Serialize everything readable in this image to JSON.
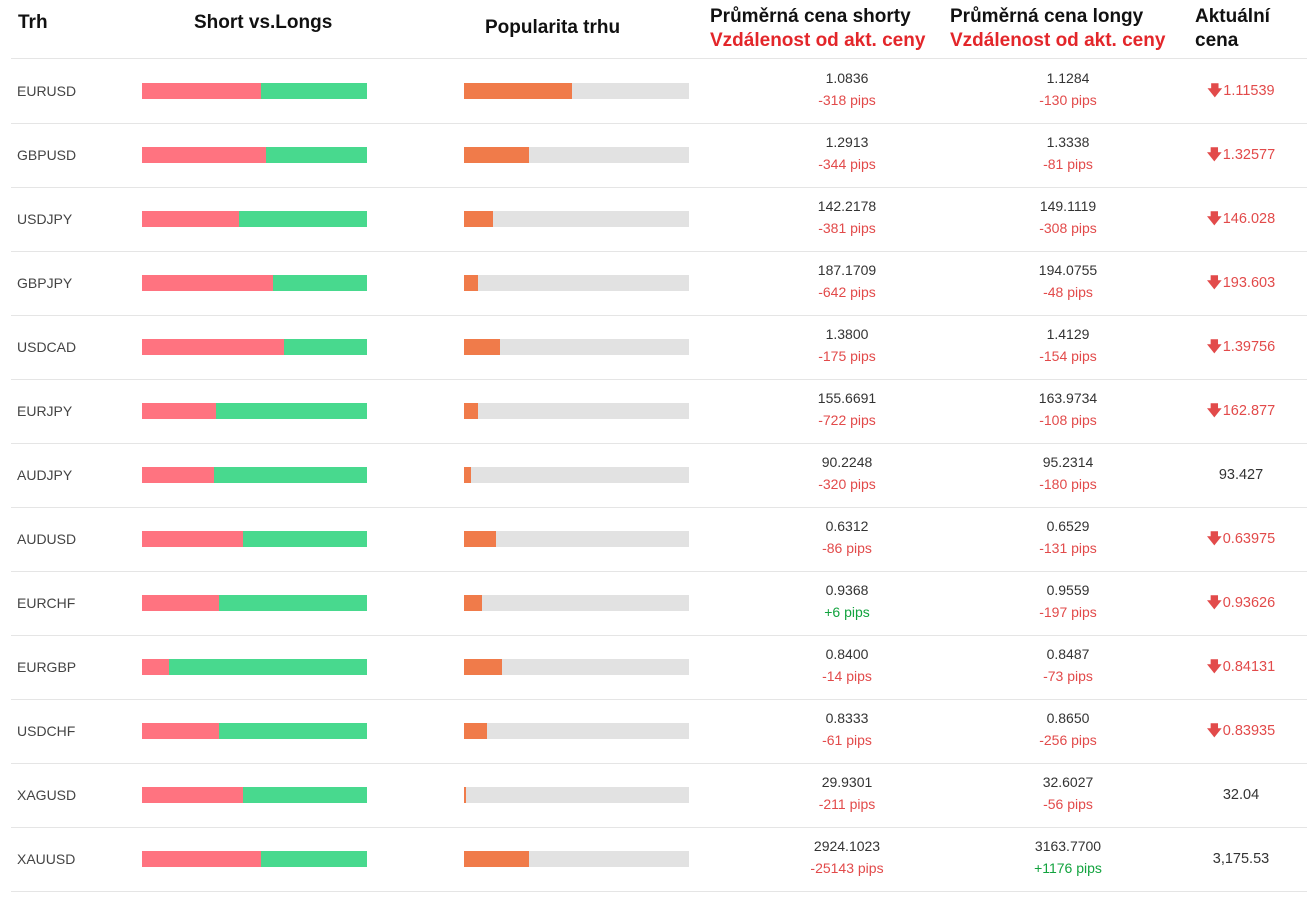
{
  "header": {
    "market": "Trh",
    "short_long": "Short vs.Longs",
    "popularity": "Popularita trhu",
    "avg_short": "Průměrná cena shorty",
    "avg_short_sub": "Vzdálenost od akt. ceny",
    "avg_long": "Průměrná cena longy",
    "avg_long_sub": "Vzdálenost od akt. ceny",
    "current_line1": "Aktuální",
    "current_line2": "cena"
  },
  "colors": {
    "short": "#ff7380",
    "long": "#48d98e",
    "popularity": "#f07b4a",
    "negative": "#e24a4a",
    "positive": "#12a33e"
  },
  "rows": [
    {
      "market": "EURUSD",
      "short_pct": 53,
      "popularity_pct": 48,
      "avg_short": "1.0836",
      "short_pips": "-318 pips",
      "short_pos": false,
      "avg_long": "1.1284",
      "long_pips": "-130 pips",
      "long_pos": false,
      "current": "1.11539",
      "down": true
    },
    {
      "market": "GBPUSD",
      "short_pct": 55,
      "popularity_pct": 29,
      "avg_short": "1.2913",
      "short_pips": "-344 pips",
      "short_pos": false,
      "avg_long": "1.3338",
      "long_pips": "-81 pips",
      "long_pos": false,
      "current": "1.32577",
      "down": true
    },
    {
      "market": "USDJPY",
      "short_pct": 43,
      "popularity_pct": 13,
      "avg_short": "142.2178",
      "short_pips": "-381 pips",
      "short_pos": false,
      "avg_long": "149.1119",
      "long_pips": "-308 pips",
      "long_pos": false,
      "current": "146.028",
      "down": true
    },
    {
      "market": "GBPJPY",
      "short_pct": 58,
      "popularity_pct": 6,
      "avg_short": "187.1709",
      "short_pips": "-642 pips",
      "short_pos": false,
      "avg_long": "194.0755",
      "long_pips": "-48 pips",
      "long_pos": false,
      "current": "193.603",
      "down": true
    },
    {
      "market": "USDCAD",
      "short_pct": 63,
      "popularity_pct": 16,
      "avg_short": "1.3800",
      "short_pips": "-175 pips",
      "short_pos": false,
      "avg_long": "1.4129",
      "long_pips": "-154 pips",
      "long_pos": false,
      "current": "1.39756",
      "down": true
    },
    {
      "market": "EURJPY",
      "short_pct": 33,
      "popularity_pct": 6,
      "avg_short": "155.6691",
      "short_pips": "-722 pips",
      "short_pos": false,
      "avg_long": "163.9734",
      "long_pips": "-108 pips",
      "long_pos": false,
      "current": "162.877",
      "down": true
    },
    {
      "market": "AUDJPY",
      "short_pct": 32,
      "popularity_pct": 3,
      "avg_short": "90.2248",
      "short_pips": "-320 pips",
      "short_pos": false,
      "avg_long": "95.2314",
      "long_pips": "-180 pips",
      "long_pos": false,
      "current": "93.427",
      "down": false
    },
    {
      "market": "AUDUSD",
      "short_pct": 45,
      "popularity_pct": 14,
      "avg_short": "0.6312",
      "short_pips": "-86 pips",
      "short_pos": false,
      "avg_long": "0.6529",
      "long_pips": "-131 pips",
      "long_pos": false,
      "current": "0.63975",
      "down": true
    },
    {
      "market": "EURCHF",
      "short_pct": 34,
      "popularity_pct": 8,
      "avg_short": "0.9368",
      "short_pips": "+6 pips",
      "short_pos": true,
      "avg_long": "0.9559",
      "long_pips": "-197 pips",
      "long_pos": false,
      "current": "0.93626",
      "down": true
    },
    {
      "market": "EURGBP",
      "short_pct": 12,
      "popularity_pct": 17,
      "avg_short": "0.8400",
      "short_pips": "-14 pips",
      "short_pos": false,
      "avg_long": "0.8487",
      "long_pips": "-73 pips",
      "long_pos": false,
      "current": "0.84131",
      "down": true
    },
    {
      "market": "USDCHF",
      "short_pct": 34,
      "popularity_pct": 10,
      "avg_short": "0.8333",
      "short_pips": "-61 pips",
      "short_pos": false,
      "avg_long": "0.8650",
      "long_pips": "-256 pips",
      "long_pos": false,
      "current": "0.83935",
      "down": true
    },
    {
      "market": "XAGUSD",
      "short_pct": 45,
      "popularity_pct": 1,
      "avg_short": "29.9301",
      "short_pips": "-211 pips",
      "short_pos": false,
      "avg_long": "32.6027",
      "long_pips": "-56 pips",
      "long_pos": false,
      "current": "32.04",
      "down": false
    },
    {
      "market": "XAUUSD",
      "short_pct": 53,
      "popularity_pct": 29,
      "avg_short": "2924.1023",
      "short_pips": "-25143 pips",
      "short_pos": false,
      "avg_long": "3163.7700",
      "long_pips": "+1176 pips",
      "long_pos": true,
      "current": "3,175.53",
      "down": false
    }
  ]
}
